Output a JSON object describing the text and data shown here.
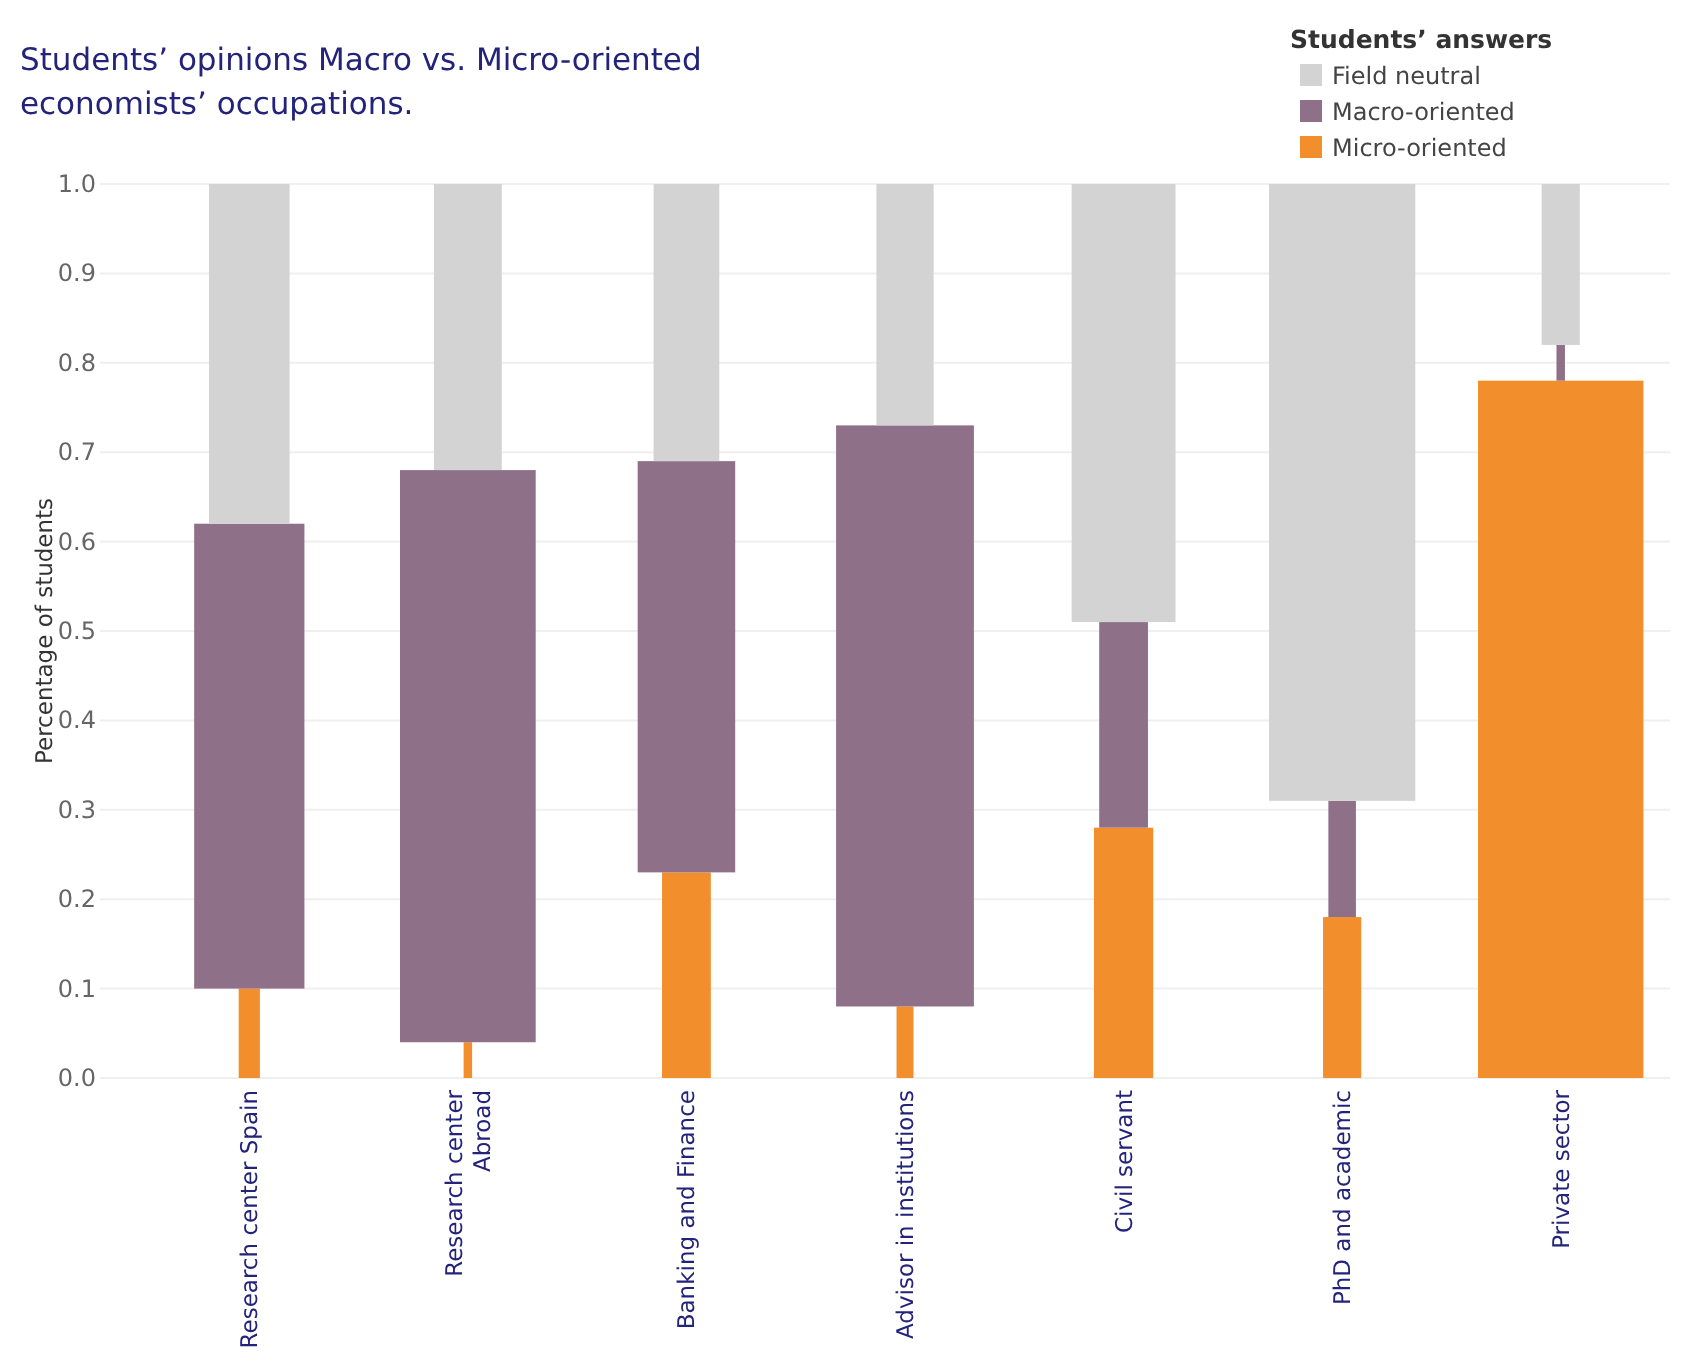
{
  "chart_data": {
    "type": "bar",
    "stacked": true,
    "title": "Students’ opinions Macro vs. Micro-oriented economists’ occupations.",
    "ylabel": "Percentage of students",
    "legend_title": "Students’ answers",
    "legend": "top right",
    "grid": "y",
    "categories": [
      "Research center Spain",
      "Research center\nAbroad",
      "Banking and Finance",
      "Advisor in institutions",
      "Civil servant",
      "PhD and academic",
      "Private sector"
    ],
    "series": [
      {
        "name": "Micro-oriented",
        "color": "#f28e2b",
        "values": [
          0.1,
          0.04,
          0.23,
          0.08,
          0.28,
          0.18,
          0.78
        ]
      },
      {
        "name": "Macro-oriented",
        "color": "#8f7089",
        "values": [
          0.52,
          0.64,
          0.46,
          0.65,
          0.23,
          0.13,
          0.04
        ]
      },
      {
        "name": "Field neutral",
        "color": "#d3d3d3",
        "values": [
          0.38,
          0.32,
          0.31,
          0.27,
          0.49,
          0.69,
          0.18
        ]
      }
    ],
    "ylim": [
      0,
      1
    ],
    "yticks": [
      {
        "value": 0,
        "label": "0.0"
      },
      0.1,
      0.2,
      0.3,
      0.4,
      0.5,
      0.6,
      0.7,
      0.8,
      0.9,
      {
        "value": 1,
        "label": "1.0"
      }
    ]
  }
}
